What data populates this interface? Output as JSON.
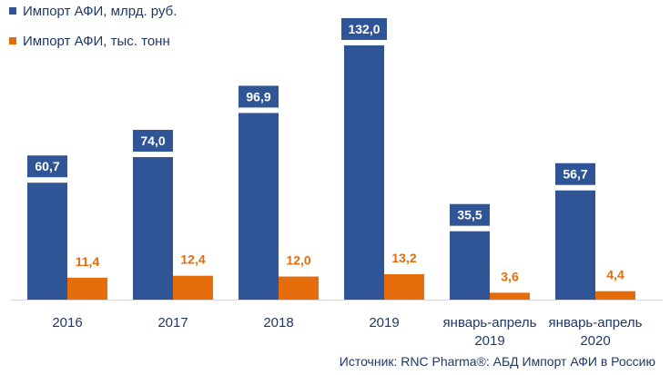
{
  "chart_data": {
    "type": "bar",
    "title": "",
    "xlabel": "",
    "ylabel": "",
    "categories": [
      [
        "2016"
      ],
      [
        "2017"
      ],
      [
        "2018"
      ],
      [
        "2019"
      ],
      [
        "январь-апрель",
        "2019"
      ],
      [
        "январь-апрель",
        "2020"
      ]
    ],
    "series": [
      {
        "name": "Импорт АФИ, млрд. руб.",
        "color": "#2f5597",
        "values": [
          60.7,
          74.0,
          96.9,
          132.0,
          35.5,
          56.7
        ],
        "labels": [
          "60,7",
          "74,0",
          "96,9",
          "132,0",
          "35,5",
          "56,7"
        ]
      },
      {
        "name": "Импорт АФИ, тыс. тонн",
        "color": "#e46c0a",
        "values": [
          11.4,
          12.4,
          12.0,
          13.2,
          3.6,
          4.4
        ],
        "labels": [
          "11,4",
          "12,4",
          "12,0",
          "13,2",
          "3,6",
          "4,4"
        ]
      }
    ],
    "ylim": [
      0,
      140
    ],
    "grid": false,
    "legend_position": "top-left",
    "source": "Источник: RNC Pharma®: АБД Импорт АФИ в Россию"
  }
}
